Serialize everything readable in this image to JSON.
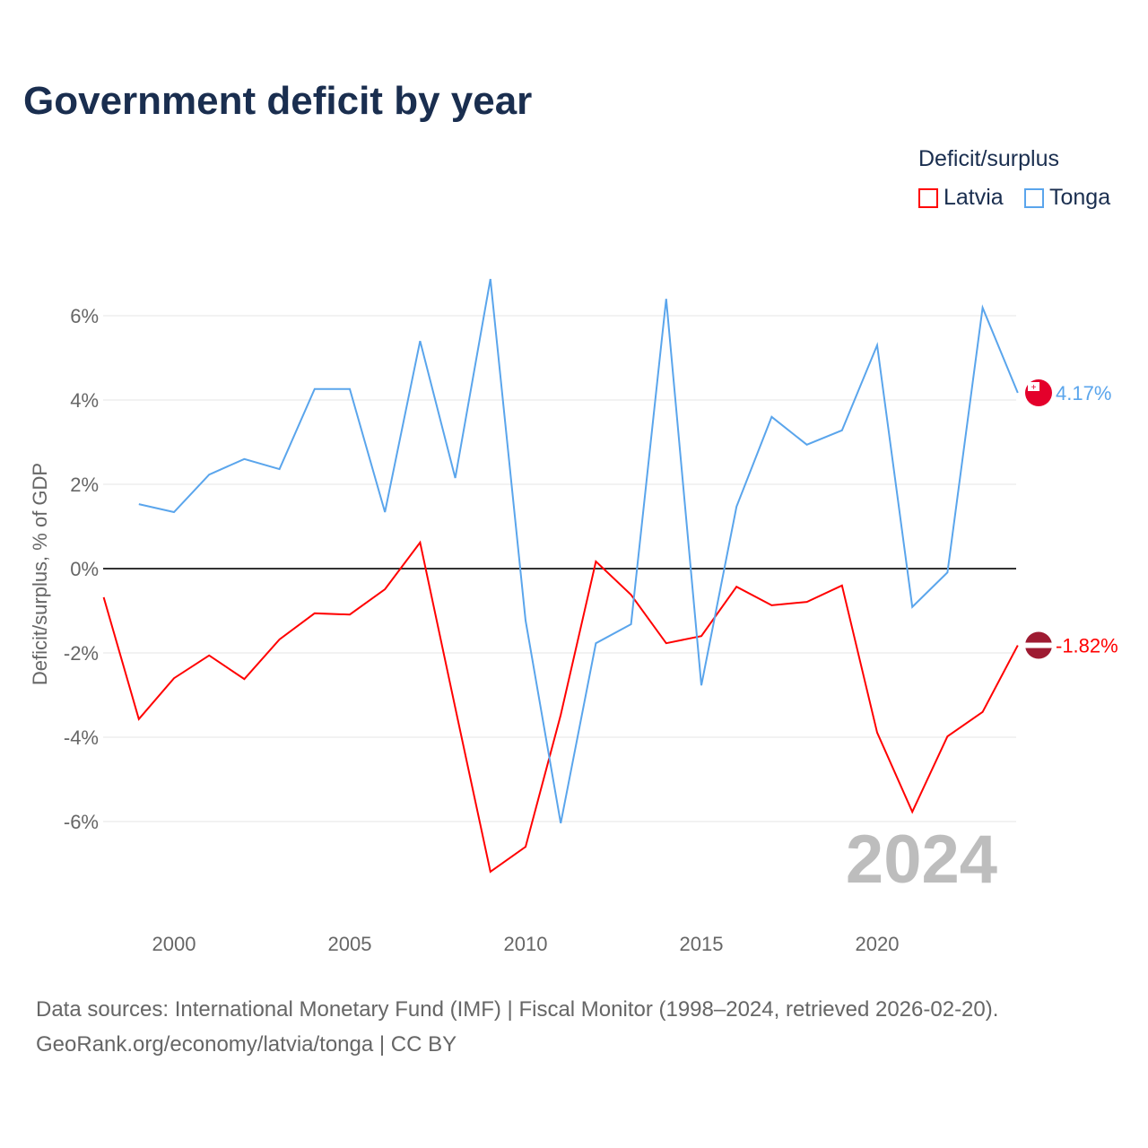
{
  "chart_data": {
    "type": "line",
    "title": "Government deficit by year",
    "ylabel": "Deficit/surplus, % of GDP",
    "xlabel": "",
    "legend_title": "Deficit/surplus",
    "legend_position": "top-right",
    "xlim": [
      1998,
      2024
    ],
    "ylim": [
      -8,
      7.5
    ],
    "x_ticks": [
      2000,
      2005,
      2010,
      2015,
      2020
    ],
    "y_ticks": [
      -6,
      -4,
      -2,
      0,
      2,
      4,
      6
    ],
    "y_tick_labels": [
      "-6%",
      "-4%",
      "-2%",
      "0%",
      "2%",
      "4%",
      "6%"
    ],
    "year_label": "2024",
    "series": [
      {
        "name": "Latvia",
        "color": "#ff0000",
        "end_label": "-1.82%",
        "x": [
          1998,
          1999,
          2000,
          2001,
          2002,
          2003,
          2004,
          2005,
          2006,
          2007,
          2008,
          2009,
          2010,
          2011,
          2012,
          2013,
          2014,
          2015,
          2016,
          2017,
          2018,
          2019,
          2020,
          2021,
          2022,
          2023,
          2024
        ],
        "values": [
          -0.68,
          -3.57,
          -2.6,
          -2.06,
          -2.62,
          -1.68,
          -1.06,
          -1.09,
          -0.49,
          0.62,
          -3.3,
          -7.19,
          -6.6,
          -3.47,
          0.17,
          -0.62,
          -1.77,
          -1.6,
          -0.43,
          -0.87,
          -0.79,
          -0.4,
          -3.89,
          -5.77,
          -3.98,
          -3.4,
          -1.82
        ]
      },
      {
        "name": "Tonga",
        "color": "#5aa5ec",
        "end_label": "4.17%",
        "x": [
          1999,
          2000,
          2001,
          2002,
          2003,
          2004,
          2005,
          2006,
          2007,
          2008,
          2009,
          2010,
          2011,
          2012,
          2013,
          2014,
          2015,
          2016,
          2017,
          2018,
          2019,
          2020,
          2021,
          2022,
          2023,
          2024
        ],
        "values": [
          1.53,
          1.34,
          2.23,
          2.6,
          2.36,
          4.26,
          4.26,
          1.34,
          5.4,
          2.15,
          6.87,
          -1.23,
          -6.04,
          -1.77,
          -1.32,
          6.4,
          -2.77,
          1.47,
          3.6,
          2.94,
          3.28,
          5.3,
          -0.91,
          -0.09,
          6.19,
          4.17
        ]
      }
    ]
  },
  "footer": {
    "line1": "Data sources: International Monetary Fund (IMF) | Fiscal Monitor (1998–2024, retrieved 2026-02-20).",
    "line2": "GeoRank.org/economy/latvia/tonga | CC BY"
  }
}
